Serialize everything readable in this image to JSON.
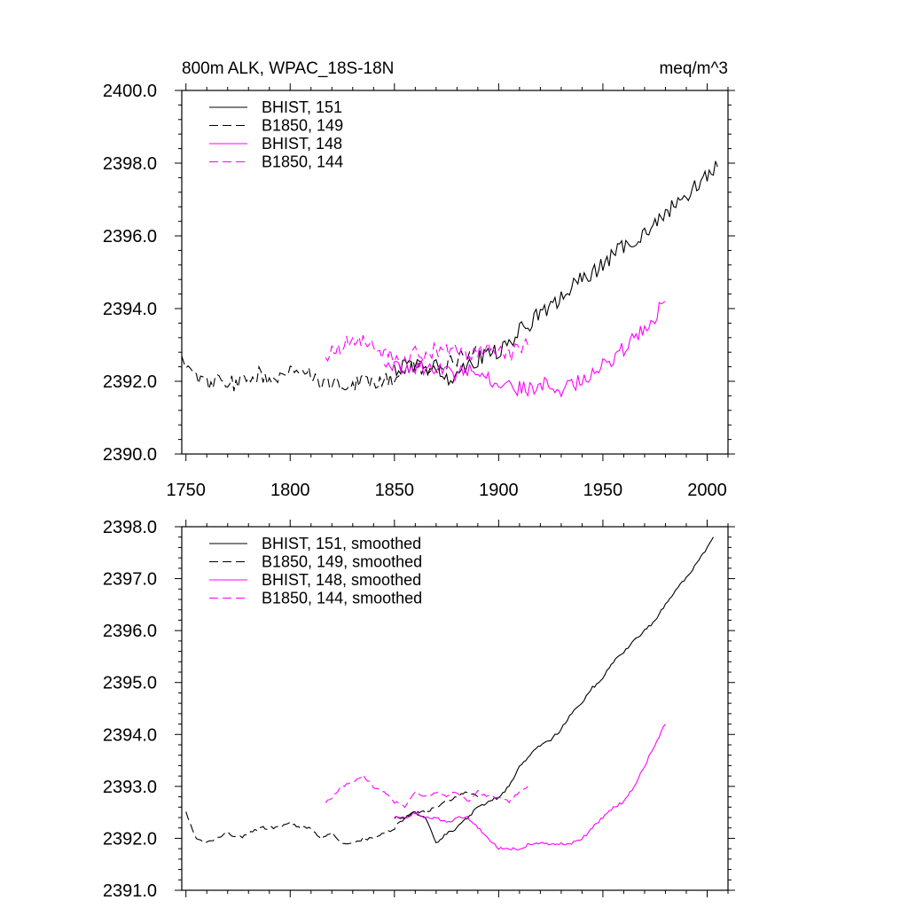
{
  "page": {
    "title_left": "800m ALK, WPAC_18S-18N",
    "title_right": "meq/m^3"
  },
  "chart_data": [
    {
      "type": "line",
      "title": "800m ALK, WPAC_18S-18N",
      "units": "meq/m^3",
      "xlim": [
        1748,
        2010
      ],
      "ylim": [
        2390.0,
        2400.0
      ],
      "x_ticks": [
        1750,
        1800,
        1850,
        1900,
        1950,
        2000
      ],
      "x_tick_labels": [
        "1750",
        "1800",
        "1850",
        "1900",
        "1950",
        "2000"
      ],
      "y_ticks": [
        2390.0,
        2392.0,
        2394.0,
        2396.0,
        2398.0,
        2400.0
      ],
      "y_tick_labels": [
        "2390.0",
        "2392.0",
        "2394.0",
        "2396.0",
        "2398.0",
        "2400.0"
      ],
      "legend_position": "top-left",
      "series": [
        {
          "name": "BHIST, 151",
          "color": "#000000",
          "dash": "solid",
          "x": [
            1850,
            1855,
            1860,
            1865,
            1870,
            1875,
            1880,
            1885,
            1890,
            1895,
            1900,
            1905,
            1910,
            1915,
            1920,
            1925,
            1930,
            1935,
            1940,
            1945,
            1950,
            1955,
            1960,
            1965,
            1970,
            1975,
            1980,
            1985,
            1990,
            1995,
            2000,
            2005
          ],
          "y": [
            2392.3,
            2392.4,
            2392.5,
            2392.3,
            2392.4,
            2392.1,
            2392.2,
            2392.5,
            2392.6,
            2392.8,
            2392.8,
            2393.0,
            2393.4,
            2393.6,
            2393.9,
            2394.0,
            2394.3,
            2394.6,
            2394.8,
            2395.0,
            2395.2,
            2395.5,
            2395.7,
            2395.9,
            2396.1,
            2396.3,
            2396.6,
            2396.9,
            2397.1,
            2397.4,
            2397.7,
            2397.9
          ]
        },
        {
          "name": "B1850, 149",
          "color": "#000000",
          "dash": "dashed",
          "x": [
            1748,
            1755,
            1760,
            1765,
            1770,
            1775,
            1780,
            1785,
            1790,
            1795,
            1800,
            1805,
            1810,
            1815,
            1820,
            1825,
            1830,
            1835,
            1840,
            1845,
            1850,
            1855,
            1860,
            1865,
            1870,
            1875,
            1880,
            1885,
            1890
          ],
          "y": [
            2392.6,
            2392.1,
            2391.9,
            2392.0,
            2392.0,
            2391.9,
            2392.1,
            2392.2,
            2392.0,
            2392.2,
            2392.2,
            2392.1,
            2392.2,
            2392.0,
            2392.0,
            2391.9,
            2391.9,
            2392.0,
            2391.9,
            2392.0,
            2392.1,
            2392.3,
            2392.4,
            2392.3,
            2392.3,
            2392.5,
            2392.6,
            2392.8,
            2392.9
          ]
        },
        {
          "name": "BHIST, 148",
          "color": "#ff00ff",
          "dash": "solid",
          "x": [
            1845,
            1850,
            1855,
            1860,
            1865,
            1870,
            1875,
            1880,
            1885,
            1890,
            1895,
            1900,
            1905,
            1910,
            1915,
            1920,
            1925,
            1930,
            1935,
            1940,
            1945,
            1950,
            1955,
            1960,
            1965,
            1970,
            1975,
            1980
          ],
          "y": [
            2392.3,
            2392.5,
            2392.4,
            2392.3,
            2392.4,
            2392.3,
            2392.3,
            2392.2,
            2392.3,
            2392.4,
            2392.1,
            2391.9,
            2391.8,
            2391.8,
            2391.8,
            2391.9,
            2391.9,
            2391.8,
            2391.9,
            2392.0,
            2392.3,
            2392.5,
            2392.6,
            2392.9,
            2393.2,
            2393.5,
            2393.8,
            2394.2
          ]
        },
        {
          "name": "B1850, 144",
          "color": "#ff00ff",
          "dash": "dashed",
          "x": [
            1817,
            1820,
            1825,
            1830,
            1835,
            1840,
            1845,
            1850,
            1855,
            1860,
            1865,
            1870,
            1875,
            1880,
            1885,
            1890,
            1895,
            1900,
            1905,
            1910,
            1914
          ],
          "y": [
            2392.7,
            2392.8,
            2393.0,
            2393.1,
            2393.2,
            2393.0,
            2392.8,
            2392.6,
            2392.5,
            2392.8,
            2392.7,
            2392.9,
            2392.8,
            2392.8,
            2392.6,
            2392.8,
            2392.9,
            2392.8,
            2392.7,
            2392.9,
            2393.0
          ]
        }
      ]
    },
    {
      "type": "line",
      "xlim": [
        1748,
        2010
      ],
      "ylim": [
        2391.0,
        2398.0
      ],
      "x_ticks": [
        1750,
        1800,
        1850,
        1900,
        1950,
        2000
      ],
      "y_ticks": [
        2391.0,
        2392.0,
        2393.0,
        2394.0,
        2395.0,
        2396.0,
        2397.0,
        2398.0
      ],
      "y_tick_labels": [
        "2391.0",
        "2392.0",
        "2393.0",
        "2394.0",
        "2395.0",
        "2396.0",
        "2397.0",
        "2398.0"
      ],
      "legend_position": "top-left",
      "series": [
        {
          "name": "BHIST, 151, smoothed",
          "color": "#000000",
          "dash": "solid",
          "x": [
            1850,
            1855,
            1860,
            1865,
            1870,
            1875,
            1880,
            1885,
            1890,
            1895,
            1900,
            1905,
            1910,
            1915,
            1920,
            1925,
            1930,
            1935,
            1940,
            1945,
            1950,
            1955,
            1960,
            1965,
            1970,
            1975,
            1980,
            1985,
            1990,
            1995,
            2000,
            2003
          ],
          "y": [
            2392.4,
            2392.4,
            2392.5,
            2392.4,
            2391.9,
            2392.1,
            2392.2,
            2392.4,
            2392.6,
            2392.7,
            2392.8,
            2393.0,
            2393.4,
            2393.6,
            2393.8,
            2393.9,
            2394.1,
            2394.4,
            2394.6,
            2394.9,
            2395.1,
            2395.4,
            2395.6,
            2395.8,
            2396.0,
            2396.2,
            2396.5,
            2396.8,
            2397.0,
            2397.3,
            2397.6,
            2397.8
          ]
        },
        {
          "name": "B1850, 149, smoothed",
          "color": "#000000",
          "dash": "dashed",
          "x": [
            1750,
            1755,
            1760,
            1765,
            1770,
            1775,
            1780,
            1785,
            1790,
            1795,
            1800,
            1805,
            1810,
            1815,
            1820,
            1825,
            1830,
            1835,
            1840,
            1845,
            1850,
            1855,
            1860,
            1865,
            1870,
            1875,
            1880,
            1885,
            1890
          ],
          "y": [
            2392.5,
            2392.0,
            2391.9,
            2392.0,
            2392.1,
            2392.0,
            2392.1,
            2392.2,
            2392.2,
            2392.2,
            2392.3,
            2392.2,
            2392.2,
            2392.0,
            2392.1,
            2391.9,
            2391.9,
            2392.0,
            2392.0,
            2392.1,
            2392.2,
            2392.4,
            2392.5,
            2392.5,
            2392.6,
            2392.7,
            2392.8,
            2392.9,
            2392.8
          ]
        },
        {
          "name": "BHIST, 148, smoothed",
          "color": "#ff00ff",
          "dash": "solid",
          "x": [
            1850,
            1855,
            1860,
            1865,
            1870,
            1875,
            1880,
            1885,
            1890,
            1895,
            1900,
            1905,
            1910,
            1915,
            1920,
            1925,
            1930,
            1935,
            1940,
            1945,
            1950,
            1955,
            1960,
            1965,
            1970,
            1975,
            1980
          ],
          "y": [
            2392.4,
            2392.4,
            2392.5,
            2392.4,
            2392.4,
            2392.3,
            2392.4,
            2392.4,
            2392.2,
            2392.0,
            2391.8,
            2391.8,
            2391.8,
            2391.9,
            2391.9,
            2391.9,
            2391.9,
            2391.9,
            2392.0,
            2392.2,
            2392.4,
            2392.6,
            2392.7,
            2393.0,
            2393.4,
            2393.8,
            2394.2
          ]
        },
        {
          "name": "B1850, 144, smoothed",
          "color": "#ff00ff",
          "dash": "dashed",
          "x": [
            1817,
            1820,
            1825,
            1830,
            1835,
            1840,
            1845,
            1850,
            1855,
            1860,
            1865,
            1870,
            1875,
            1880,
            1885,
            1890,
            1895,
            1900,
            1905,
            1910,
            1914
          ],
          "y": [
            2392.7,
            2392.8,
            2393.0,
            2393.1,
            2393.2,
            2393.0,
            2392.9,
            2392.7,
            2392.6,
            2392.9,
            2392.8,
            2392.9,
            2392.8,
            2392.9,
            2392.7,
            2392.9,
            2392.8,
            2392.8,
            2392.7,
            2392.9,
            2393.0
          ]
        }
      ]
    }
  ]
}
